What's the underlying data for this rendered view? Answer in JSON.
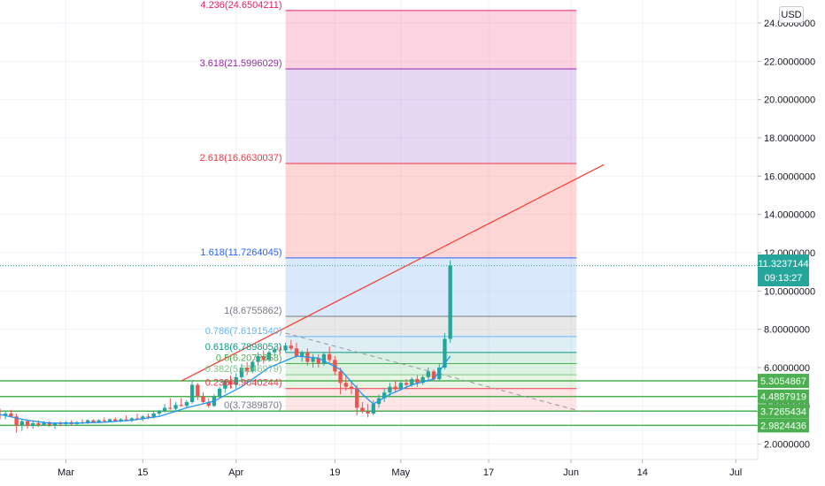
{
  "currency_button": "USD",
  "last_price": {
    "value": "11.3237144",
    "countdown": "09:13:27"
  },
  "chart_data": {
    "type": "candlestick",
    "title": "",
    "y_axis": {
      "min": 1.2,
      "max": 25.2,
      "position": "right",
      "ticks": [
        {
          "v": 2,
          "label": "2.0000000"
        },
        {
          "v": 4,
          "label": "4.0000000"
        },
        {
          "v": 6,
          "label": "6.0000000"
        },
        {
          "v": 8,
          "label": "8.0000000"
        },
        {
          "v": 10,
          "label": "10.0000000"
        },
        {
          "v": 12,
          "label": "12.0000000"
        },
        {
          "v": 14,
          "label": "14.0000000"
        },
        {
          "v": 16,
          "label": "16.0000000"
        },
        {
          "v": 18,
          "label": "18.0000000"
        },
        {
          "v": 20,
          "label": "20.0000000"
        },
        {
          "v": 22,
          "label": "22.0000000"
        },
        {
          "v": 24,
          "label": "24.0000000"
        }
      ]
    },
    "x_axis": {
      "min": "2021-02-17",
      "max": "2021-07-05",
      "ticks": [
        {
          "d": "2021-03-01",
          "label": "Mar"
        },
        {
          "d": "2021-03-15",
          "label": "15"
        },
        {
          "d": "2021-04-01",
          "label": "Apr"
        },
        {
          "d": "2021-04-19",
          "label": "19"
        },
        {
          "d": "2021-05-01",
          "label": "May"
        },
        {
          "d": "2021-05-17",
          "label": "17"
        },
        {
          "d": "2021-06-01",
          "label": "Jun"
        },
        {
          "d": "2021-06-14",
          "label": "14"
        },
        {
          "d": "2021-07-01",
          "label": "Jul"
        }
      ]
    },
    "grid": true,
    "colors": {
      "up": "#26a69a",
      "down": "#ef5350",
      "ma": "#2196f3",
      "support": "#4caf50",
      "trend": "#f44336"
    },
    "candles": [
      {
        "d": "2021-02-17",
        "o": 3.55,
        "h": 3.85,
        "l": 3.3,
        "c": 3.5
      },
      {
        "d": "2021-02-18",
        "o": 3.5,
        "h": 3.7,
        "l": 3.3,
        "c": 3.6
      },
      {
        "d": "2021-02-19",
        "o": 3.6,
        "h": 3.8,
        "l": 3.4,
        "c": 3.45
      },
      {
        "d": "2021-02-20",
        "o": 3.45,
        "h": 3.6,
        "l": 2.6,
        "c": 3.0
      },
      {
        "d": "2021-02-21",
        "o": 3.0,
        "h": 3.3,
        "l": 2.7,
        "c": 3.2
      },
      {
        "d": "2021-02-22",
        "o": 3.2,
        "h": 3.3,
        "l": 2.8,
        "c": 2.95
      },
      {
        "d": "2021-02-23",
        "o": 2.95,
        "h": 3.2,
        "l": 2.8,
        "c": 3.1
      },
      {
        "d": "2021-02-24",
        "o": 3.1,
        "h": 3.25,
        "l": 2.9,
        "c": 3.0
      },
      {
        "d": "2021-02-25",
        "o": 3.0,
        "h": 3.2,
        "l": 2.95,
        "c": 3.15
      },
      {
        "d": "2021-02-26",
        "o": 3.15,
        "h": 3.2,
        "l": 2.9,
        "c": 3.0
      },
      {
        "d": "2021-02-27",
        "o": 3.0,
        "h": 3.15,
        "l": 2.8,
        "c": 3.1
      },
      {
        "d": "2021-02-28",
        "o": 3.1,
        "h": 3.2,
        "l": 2.95,
        "c": 3.05
      },
      {
        "d": "2021-03-01",
        "o": 3.05,
        "h": 3.2,
        "l": 2.95,
        "c": 3.15
      },
      {
        "d": "2021-03-02",
        "o": 3.15,
        "h": 3.25,
        "l": 3.0,
        "c": 3.05
      },
      {
        "d": "2021-03-03",
        "o": 3.05,
        "h": 3.2,
        "l": 3.0,
        "c": 3.15
      },
      {
        "d": "2021-03-04",
        "o": 3.15,
        "h": 3.3,
        "l": 3.05,
        "c": 3.1
      },
      {
        "d": "2021-03-05",
        "o": 3.1,
        "h": 3.3,
        "l": 3.05,
        "c": 3.25
      },
      {
        "d": "2021-03-06",
        "o": 3.25,
        "h": 3.3,
        "l": 3.1,
        "c": 3.15
      },
      {
        "d": "2021-03-07",
        "o": 3.15,
        "h": 3.3,
        "l": 3.1,
        "c": 3.25
      },
      {
        "d": "2021-03-08",
        "o": 3.25,
        "h": 3.4,
        "l": 3.15,
        "c": 3.2
      },
      {
        "d": "2021-03-09",
        "o": 3.2,
        "h": 3.35,
        "l": 3.15,
        "c": 3.3
      },
      {
        "d": "2021-03-10",
        "o": 3.3,
        "h": 3.4,
        "l": 3.15,
        "c": 3.2
      },
      {
        "d": "2021-03-11",
        "o": 3.2,
        "h": 3.35,
        "l": 3.15,
        "c": 3.3
      },
      {
        "d": "2021-03-12",
        "o": 3.3,
        "h": 3.5,
        "l": 3.2,
        "c": 3.25
      },
      {
        "d": "2021-03-13",
        "o": 3.25,
        "h": 3.4,
        "l": 3.15,
        "c": 3.35
      },
      {
        "d": "2021-03-14",
        "o": 3.35,
        "h": 3.6,
        "l": 3.25,
        "c": 3.3
      },
      {
        "d": "2021-03-15",
        "o": 3.3,
        "h": 3.5,
        "l": 3.2,
        "c": 3.45
      },
      {
        "d": "2021-03-16",
        "o": 3.45,
        "h": 3.6,
        "l": 3.3,
        "c": 3.4
      },
      {
        "d": "2021-03-17",
        "o": 3.4,
        "h": 3.7,
        "l": 3.35,
        "c": 3.6
      },
      {
        "d": "2021-03-18",
        "o": 3.6,
        "h": 3.8,
        "l": 3.5,
        "c": 3.75
      },
      {
        "d": "2021-03-19",
        "o": 3.75,
        "h": 4.1,
        "l": 3.65,
        "c": 3.9
      },
      {
        "d": "2021-03-20",
        "o": 3.9,
        "h": 4.4,
        "l": 3.8,
        "c": 3.85
      },
      {
        "d": "2021-03-21",
        "o": 3.85,
        "h": 4.2,
        "l": 3.75,
        "c": 4.05
      },
      {
        "d": "2021-03-22",
        "o": 4.05,
        "h": 4.4,
        "l": 3.95,
        "c": 4.0
      },
      {
        "d": "2021-03-23",
        "o": 4.0,
        "h": 4.3,
        "l": 3.9,
        "c": 4.2
      },
      {
        "d": "2021-03-24",
        "o": 4.2,
        "h": 5.3,
        "l": 4.1,
        "c": 5.1
      },
      {
        "d": "2021-03-25",
        "o": 5.1,
        "h": 5.2,
        "l": 4.3,
        "c": 4.5
      },
      {
        "d": "2021-03-26",
        "o": 4.5,
        "h": 4.7,
        "l": 4.1,
        "c": 4.2
      },
      {
        "d": "2021-03-27",
        "o": 4.2,
        "h": 4.4,
        "l": 3.9,
        "c": 4.0
      },
      {
        "d": "2021-03-28",
        "o": 4.0,
        "h": 4.6,
        "l": 3.95,
        "c": 4.5
      },
      {
        "d": "2021-03-29",
        "o": 4.5,
        "h": 5.0,
        "l": 4.4,
        "c": 4.9
      },
      {
        "d": "2021-03-30",
        "o": 4.9,
        "h": 5.4,
        "l": 4.7,
        "c": 5.3
      },
      {
        "d": "2021-03-31",
        "o": 5.3,
        "h": 5.6,
        "l": 4.9,
        "c": 5.1
      },
      {
        "d": "2021-04-01",
        "o": 5.1,
        "h": 5.7,
        "l": 4.9,
        "c": 5.5
      },
      {
        "d": "2021-04-02",
        "o": 5.5,
        "h": 6.2,
        "l": 5.3,
        "c": 6.0
      },
      {
        "d": "2021-04-03",
        "o": 6.0,
        "h": 6.3,
        "l": 5.6,
        "c": 5.8
      },
      {
        "d": "2021-04-04",
        "o": 5.8,
        "h": 6.4,
        "l": 5.7,
        "c": 6.3
      },
      {
        "d": "2021-04-05",
        "o": 6.3,
        "h": 6.8,
        "l": 6.1,
        "c": 6.6
      },
      {
        "d": "2021-04-06",
        "o": 6.6,
        "h": 6.9,
        "l": 6.2,
        "c": 6.4
      },
      {
        "d": "2021-04-07",
        "o": 6.4,
        "h": 6.9,
        "l": 6.3,
        "c": 6.8
      },
      {
        "d": "2021-04-08",
        "o": 6.8,
        "h": 7.1,
        "l": 6.6,
        "c": 6.95
      },
      {
        "d": "2021-04-09",
        "o": 6.95,
        "h": 7.1,
        "l": 6.7,
        "c": 6.9
      },
      {
        "d": "2021-04-10",
        "o": 6.9,
        "h": 7.3,
        "l": 6.8,
        "c": 7.15
      },
      {
        "d": "2021-04-11",
        "o": 7.15,
        "h": 7.45,
        "l": 6.9,
        "c": 7.0
      },
      {
        "d": "2021-04-12",
        "o": 7.0,
        "h": 7.3,
        "l": 6.5,
        "c": 6.6
      },
      {
        "d": "2021-04-13",
        "o": 6.6,
        "h": 6.9,
        "l": 6.3,
        "c": 6.8
      },
      {
        "d": "2021-04-14",
        "o": 6.8,
        "h": 7.0,
        "l": 6.1,
        "c": 6.3
      },
      {
        "d": "2021-04-15",
        "o": 6.3,
        "h": 6.7,
        "l": 6.0,
        "c": 6.5
      },
      {
        "d": "2021-04-16",
        "o": 6.5,
        "h": 6.7,
        "l": 6.0,
        "c": 6.2
      },
      {
        "d": "2021-04-17",
        "o": 6.2,
        "h": 6.8,
        "l": 6.1,
        "c": 6.7
      },
      {
        "d": "2021-04-18",
        "o": 6.7,
        "h": 7.1,
        "l": 6.2,
        "c": 6.4
      },
      {
        "d": "2021-04-19",
        "o": 6.4,
        "h": 6.6,
        "l": 5.6,
        "c": 5.8
      },
      {
        "d": "2021-04-20",
        "o": 5.8,
        "h": 6.0,
        "l": 4.6,
        "c": 5.2
      },
      {
        "d": "2021-04-21",
        "o": 5.2,
        "h": 5.6,
        "l": 4.8,
        "c": 5.0
      },
      {
        "d": "2021-04-22",
        "o": 5.0,
        "h": 5.3,
        "l": 4.6,
        "c": 4.9
      },
      {
        "d": "2021-04-23",
        "o": 4.9,
        "h": 5.1,
        "l": 3.5,
        "c": 3.9
      },
      {
        "d": "2021-04-24",
        "o": 3.9,
        "h": 4.2,
        "l": 3.6,
        "c": 3.7
      },
      {
        "d": "2021-04-25",
        "o": 3.7,
        "h": 4.1,
        "l": 3.4,
        "c": 3.6
      },
      {
        "d": "2021-04-26",
        "o": 3.6,
        "h": 4.3,
        "l": 3.5,
        "c": 4.1
      },
      {
        "d": "2021-04-27",
        "o": 4.1,
        "h": 4.6,
        "l": 3.9,
        "c": 4.4
      },
      {
        "d": "2021-04-28",
        "o": 4.4,
        "h": 4.9,
        "l": 4.2,
        "c": 4.7
      },
      {
        "d": "2021-04-29",
        "o": 4.7,
        "h": 5.2,
        "l": 4.5,
        "c": 5.0
      },
      {
        "d": "2021-04-30",
        "o": 5.0,
        "h": 5.3,
        "l": 4.7,
        "c": 4.9
      },
      {
        "d": "2021-05-01",
        "o": 4.9,
        "h": 5.3,
        "l": 4.8,
        "c": 5.2
      },
      {
        "d": "2021-05-02",
        "o": 5.2,
        "h": 5.4,
        "l": 4.9,
        "c": 5.1
      },
      {
        "d": "2021-05-03",
        "o": 5.1,
        "h": 5.5,
        "l": 5.0,
        "c": 5.4
      },
      {
        "d": "2021-05-04",
        "o": 5.4,
        "h": 5.6,
        "l": 5.0,
        "c": 5.2
      },
      {
        "d": "2021-05-05",
        "o": 5.2,
        "h": 5.6,
        "l": 5.1,
        "c": 5.5
      },
      {
        "d": "2021-05-06",
        "o": 5.5,
        "h": 6.0,
        "l": 5.3,
        "c": 5.8
      },
      {
        "d": "2021-05-07",
        "o": 5.8,
        "h": 5.9,
        "l": 5.3,
        "c": 5.4
      },
      {
        "d": "2021-05-08",
        "o": 5.4,
        "h": 6.2,
        "l": 5.3,
        "c": 6.0
      },
      {
        "d": "2021-05-09",
        "o": 6.0,
        "h": 7.8,
        "l": 5.9,
        "c": 7.5
      },
      {
        "d": "2021-05-10",
        "o": 7.5,
        "h": 11.6,
        "l": 7.3,
        "c": 11.3237144
      }
    ],
    "moving_average": [
      {
        "d": "2021-02-17",
        "v": 3.55
      },
      {
        "d": "2021-02-22",
        "v": 3.25
      },
      {
        "d": "2021-02-26",
        "v": 3.1
      },
      {
        "d": "2021-03-03",
        "v": 3.1
      },
      {
        "d": "2021-03-08",
        "v": 3.15
      },
      {
        "d": "2021-03-13",
        "v": 3.25
      },
      {
        "d": "2021-03-18",
        "v": 3.45
      },
      {
        "d": "2021-03-23",
        "v": 3.9
      },
      {
        "d": "2021-03-28",
        "v": 4.25
      },
      {
        "d": "2021-04-02",
        "v": 5.0
      },
      {
        "d": "2021-04-07",
        "v": 6.0
      },
      {
        "d": "2021-04-12",
        "v": 6.6
      },
      {
        "d": "2021-04-16",
        "v": 6.5
      },
      {
        "d": "2021-04-20",
        "v": 5.9
      },
      {
        "d": "2021-04-24",
        "v": 4.6
      },
      {
        "d": "2021-04-26",
        "v": 4.1
      },
      {
        "d": "2021-04-29",
        "v": 4.6
      },
      {
        "d": "2021-05-03",
        "v": 5.1
      },
      {
        "d": "2021-05-07",
        "v": 5.4
      },
      {
        "d": "2021-05-10",
        "v": 6.6
      }
    ],
    "fibonacci": {
      "x_start": "2021-04-10",
      "x_end": "2021-06-02",
      "levels": [
        {
          "label": "0(3.7389870)",
          "v": 3.738987,
          "line": "#787b86",
          "fill": "rgba(255,140,140,0.22)"
        },
        {
          "label": "0.236(4.9040244)",
          "v": 4.9040244,
          "line": "#f23645",
          "fill": "rgba(120,200,110,0.18)"
        },
        {
          "label": "0.382(5.6246979)",
          "v": 5.6246979,
          "line": "#81c784",
          "fill": "rgba(90,190,110,0.20)"
        },
        {
          "label": "0.5(6.2072858)",
          "v": 6.2072858,
          "line": "#4caf50",
          "fill": "rgba(50,170,110,0.18)"
        },
        {
          "label": "0.618(6.7898053)",
          "v": 6.7898053,
          "line": "#089981",
          "fill": "rgba(80,160,200,0.18)"
        },
        {
          "label": "0.786(7.6191540)",
          "v": 7.619154,
          "line": "#64b5f6",
          "fill": "rgba(150,150,150,0.22)"
        },
        {
          "label": "1(8.6755862)",
          "v": 8.6755862,
          "line": "#787b86",
          "fill": "rgba(110,170,240,0.26)"
        },
        {
          "label": "1.618(11.7264045)",
          "v": 11.7264045,
          "line": "#2962ff",
          "fill": "rgba(255,120,120,0.30)"
        },
        {
          "label": "2.618(16.6630037)",
          "v": 16.6630037,
          "line": "#f23645",
          "fill": "rgba(190,150,220,0.38)"
        },
        {
          "label": "3.618(21.5996029)",
          "v": 21.5996029,
          "line": "#9c27b0",
          "fill": "rgba(245,130,170,0.35)"
        },
        {
          "label": "4.236(24.6504211)",
          "v": 24.6504211,
          "line": "#e91e63",
          "fill": null
        }
      ]
    },
    "trend_line": {
      "from": {
        "d": "2021-03-22",
        "v": 5.3
      },
      "to": {
        "d": "2021-06-07",
        "v": 16.6
      }
    },
    "dashed_line": {
      "from": {
        "d": "2021-04-10",
        "v": 7.8
      },
      "to": {
        "d": "2021-06-03",
        "v": 3.7
      }
    },
    "support_lines": [
      {
        "label": "5.3054867",
        "v": 5.3054867
      },
      {
        "label": "4.4887919",
        "v": 4.4887919
      },
      {
        "label": "3.7265434",
        "v": 3.7265434
      },
      {
        "label": "2.9824436",
        "v": 2.9824436
      }
    ]
  }
}
